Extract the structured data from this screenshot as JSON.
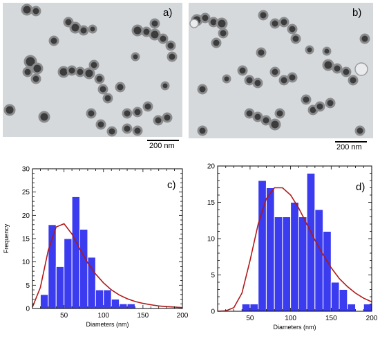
{
  "micrographs": [
    {
      "letter": "a)",
      "scale_label": "200 nm"
    },
    {
      "letter": "b)",
      "scale_label": "200 nm"
    }
  ],
  "chart_data": [
    {
      "type": "bar",
      "letter": "c)",
      "xlabel": "Diameters (nm)",
      "ylabel": "Frequency",
      "xlim": [
        10,
        200
      ],
      "ylim": [
        0,
        30
      ],
      "xticks": [
        50,
        100,
        150,
        200
      ],
      "yticks": [
        0,
        5,
        10,
        15,
        20,
        25,
        30
      ],
      "bin_width": 10,
      "bins": [
        {
          "x0": 20,
          "value": 3
        },
        {
          "x0": 30,
          "value": 18
        },
        {
          "x0": 40,
          "value": 9
        },
        {
          "x0": 50,
          "value": 15
        },
        {
          "x0": 60,
          "value": 24
        },
        {
          "x0": 70,
          "value": 17
        },
        {
          "x0": 80,
          "value": 11
        },
        {
          "x0": 90,
          "value": 4
        },
        {
          "x0": 100,
          "value": 4
        },
        {
          "x0": 110,
          "value": 2
        },
        {
          "x0": 120,
          "value": 1
        },
        {
          "x0": 130,
          "value": 1
        }
      ],
      "fit_curve": {
        "x": [
          10,
          20,
          30,
          40,
          50,
          60,
          70,
          80,
          90,
          100,
          110,
          120,
          130,
          140,
          150,
          160,
          170,
          180,
          190,
          200
        ],
        "y": [
          0.3,
          4.5,
          12.5,
          17.5,
          18.2,
          16.0,
          12.8,
          9.8,
          7.4,
          5.5,
          4.0,
          2.9,
          2.1,
          1.5,
          1.1,
          0.8,
          0.55,
          0.4,
          0.3,
          0.2
        ]
      },
      "bar_color": "#3b3bf0",
      "curve_color": "#b01818"
    },
    {
      "type": "bar",
      "letter": "d)",
      "xlabel": "Diameters (nm)",
      "ylabel": "",
      "xlim": [
        10,
        200
      ],
      "ylim": [
        0,
        20
      ],
      "xticks": [
        50,
        100,
        150,
        200
      ],
      "yticks": [
        0,
        5,
        10,
        15,
        20
      ],
      "bin_width": 10,
      "bins": [
        {
          "x0": 40,
          "value": 1
        },
        {
          "x0": 50,
          "value": 1
        },
        {
          "x0": 60,
          "value": 18
        },
        {
          "x0": 70,
          "value": 17
        },
        {
          "x0": 80,
          "value": 13
        },
        {
          "x0": 90,
          "value": 13
        },
        {
          "x0": 100,
          "value": 15
        },
        {
          "x0": 110,
          "value": 13
        },
        {
          "x0": 120,
          "value": 19
        },
        {
          "x0": 130,
          "value": 14
        },
        {
          "x0": 140,
          "value": 11
        },
        {
          "x0": 150,
          "value": 4
        },
        {
          "x0": 160,
          "value": 3
        },
        {
          "x0": 170,
          "value": 1
        },
        {
          "x0": 190,
          "value": 1
        }
      ],
      "fit_curve": {
        "x": [
          10,
          20,
          30,
          40,
          50,
          60,
          70,
          80,
          90,
          100,
          110,
          120,
          130,
          140,
          150,
          160,
          170,
          180,
          190,
          200
        ],
        "y": [
          0,
          0.05,
          0.5,
          2.5,
          7.0,
          12.0,
          15.5,
          17.0,
          17.0,
          16.0,
          14.2,
          12.0,
          9.8,
          7.8,
          6.0,
          4.5,
          3.4,
          2.5,
          1.8,
          1.3
        ]
      },
      "bar_color": "#3b3bf0",
      "curve_color": "#b01818"
    }
  ]
}
